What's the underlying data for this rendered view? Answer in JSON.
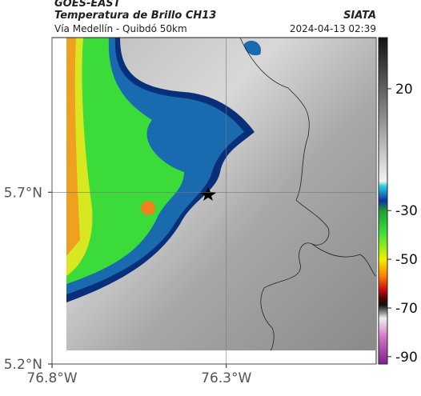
{
  "header": {
    "source": "GOES-EAST",
    "title": "Temperatura de Brillo CH13",
    "org": "SIATA",
    "subtitle": "Vía Medellín - Quibdó 50km",
    "timestamp": "2024-04-13 02:39"
  },
  "map": {
    "xlim": [
      -76.8,
      -75.87
    ],
    "ylim": [
      5.2,
      6.15
    ],
    "xticks": [
      {
        "value": -76.8,
        "label": "76.8°W"
      },
      {
        "value": -76.3,
        "label": "76.3°W"
      }
    ],
    "yticks": [
      {
        "value": 5.7,
        "label": "5.7°N"
      },
      {
        "value": 5.2,
        "label": "5.2°N"
      }
    ]
  },
  "colorbar": {
    "lim": [
      41,
      -93
    ],
    "ticks": [
      20,
      -30,
      -50,
      -70,
      -90
    ]
  }
}
